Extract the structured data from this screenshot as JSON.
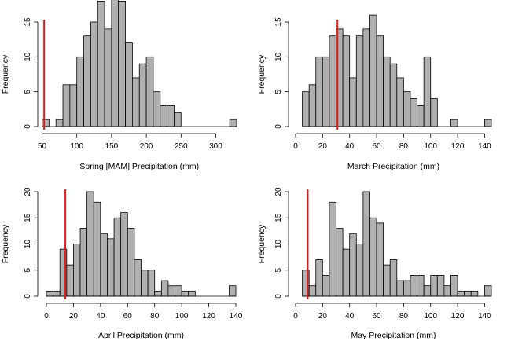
{
  "chart_data": [
    {
      "type": "bar",
      "xlabel": "Spring [MAM] Precipitation (mm)",
      "ylabel": "Frequency",
      "bin_width": 10,
      "bins_start": [
        50,
        70,
        80,
        90,
        100,
        110,
        120,
        130,
        140,
        150,
        160,
        170,
        180,
        190,
        200,
        210,
        220,
        230,
        240,
        320
      ],
      "values": [
        1,
        1,
        6,
        6,
        10,
        13,
        15,
        18,
        14,
        19,
        18,
        12,
        7,
        9,
        10,
        5,
        3,
        3,
        2,
        1
      ],
      "xlim": [
        50,
        330
      ],
      "ylim": [
        0,
        19
      ],
      "xticks": [
        50,
        100,
        150,
        200,
        250,
        300
      ],
      "yticks": [
        0,
        5,
        10,
        15
      ],
      "marker_x": 53
    },
    {
      "type": "bar",
      "xlabel": "March Precipitation (mm)",
      "ylabel": "Frequency",
      "bin_width": 5,
      "bins_start": [
        5,
        10,
        15,
        20,
        25,
        30,
        35,
        40,
        45,
        50,
        55,
        60,
        65,
        70,
        75,
        80,
        85,
        90,
        95,
        100,
        115,
        140
      ],
      "values": [
        5,
        6,
        10,
        10,
        13,
        14,
        13,
        7,
        13,
        14,
        16,
        13,
        10,
        9,
        7,
        5,
        4,
        3,
        10,
        4,
        1,
        1
      ],
      "xlim": [
        0,
        145
      ],
      "ylim": [
        0,
        16
      ],
      "xticks": [
        0,
        20,
        40,
        60,
        80,
        100,
        120,
        140
      ],
      "yticks": [
        0,
        5,
        10,
        15
      ],
      "marker_x": 31
    },
    {
      "type": "bar",
      "xlabel": "April Precipitation (mm)",
      "ylabel": "Frequency",
      "bin_width": 5,
      "bins_start": [
        0,
        5,
        10,
        15,
        20,
        25,
        30,
        35,
        40,
        45,
        50,
        55,
        60,
        65,
        70,
        75,
        80,
        85,
        90,
        95,
        100,
        105,
        135
      ],
      "values": [
        1,
        1,
        9,
        6,
        10,
        13,
        20,
        18,
        12,
        11,
        15,
        16,
        13,
        7,
        5,
        5,
        1,
        3,
        2,
        2,
        1,
        1,
        2
      ],
      "xlim": [
        0,
        140
      ],
      "ylim": [
        0,
        20
      ],
      "xticks": [
        0,
        20,
        40,
        60,
        80,
        100,
        120,
        140
      ],
      "yticks": [
        0,
        5,
        10,
        15,
        20
      ],
      "marker_x": 14
    },
    {
      "type": "bar",
      "xlabel": "May Precipitation (mm)",
      "ylabel": "Frequency",
      "bin_width": 5,
      "bins_start": [
        5,
        10,
        15,
        20,
        25,
        30,
        35,
        40,
        45,
        50,
        55,
        60,
        65,
        70,
        75,
        80,
        85,
        90,
        95,
        100,
        105,
        110,
        115,
        120,
        125,
        130,
        140
      ],
      "values": [
        5,
        2,
        7,
        4,
        18,
        13,
        9,
        12,
        10,
        20,
        15,
        14,
        6,
        7,
        3,
        3,
        4,
        4,
        2,
        4,
        4,
        2,
        4,
        1,
        1,
        1,
        2
      ],
      "xlim": [
        0,
        145
      ],
      "ylim": [
        0,
        20
      ],
      "xticks": [
        0,
        20,
        40,
        60,
        80,
        100,
        120,
        140
      ],
      "yticks": [
        0,
        5,
        10,
        15,
        20
      ],
      "marker_x": 9
    }
  ],
  "colors": {
    "bar_fill": "#b0b0b0",
    "bar_stroke": "#000000",
    "marker": "#e0191a"
  }
}
